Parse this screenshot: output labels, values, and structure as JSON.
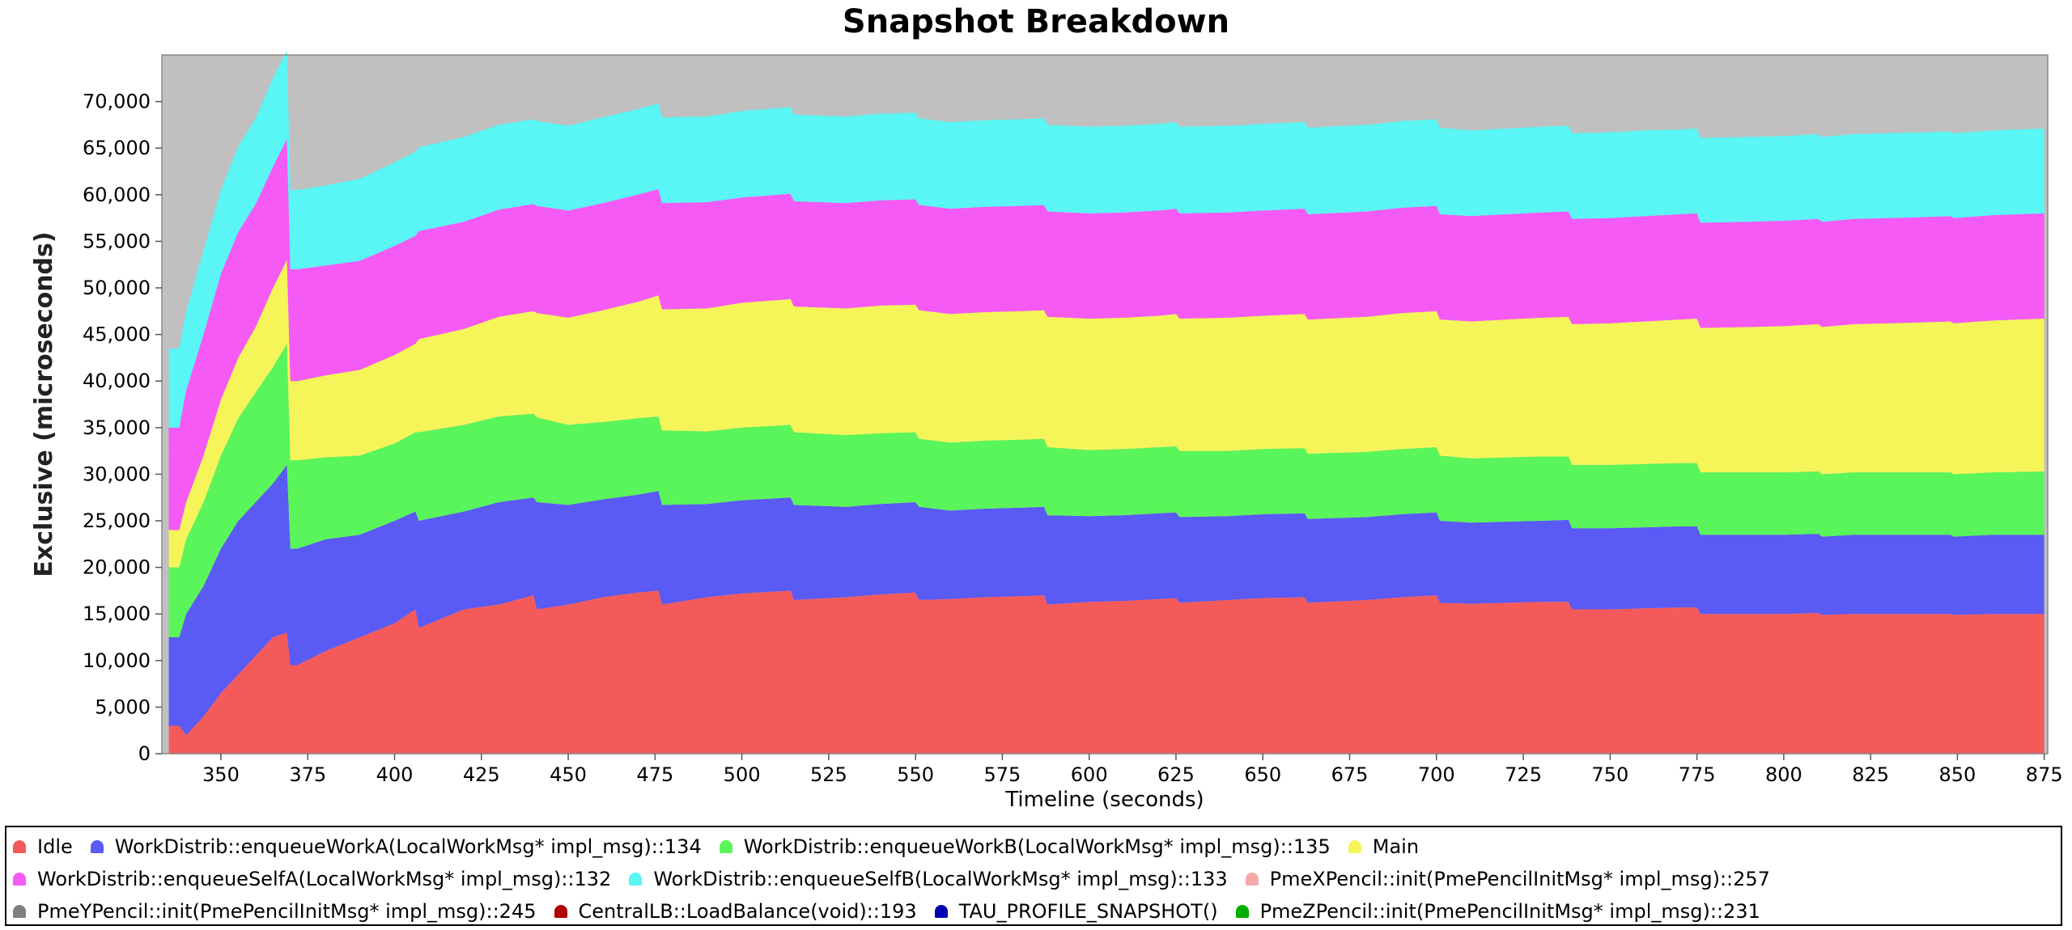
{
  "title": "Snapshot Breakdown",
  "chart_data": {
    "type": "area",
    "stacked": true,
    "title": "Snapshot Breakdown",
    "xlabel": "Timeline (seconds)",
    "ylabel": "Exclusive (microseconds)",
    "xlim": [
      333,
      876
    ],
    "ylim": [
      0,
      75000
    ],
    "x_ticks": [
      350,
      375,
      400,
      425,
      450,
      475,
      500,
      525,
      550,
      575,
      600,
      625,
      650,
      675,
      700,
      725,
      750,
      775,
      800,
      825,
      850,
      875
    ],
    "x_tick_labels": [
      "350",
      "375",
      "400",
      "425",
      "450",
      "475",
      "500",
      "525",
      "550",
      "575",
      "600",
      "625",
      "650",
      "675",
      "700",
      "725",
      "750",
      "775",
      "800",
      "825",
      "850",
      "875"
    ],
    "y_ticks": [
      0,
      5000,
      10000,
      15000,
      20000,
      25000,
      30000,
      35000,
      40000,
      45000,
      50000,
      55000,
      60000,
      65000,
      70000
    ],
    "y_tick_labels": [
      "0",
      "5,000",
      "10,000",
      "15,000",
      "20,000",
      "25,000",
      "30,000",
      "35,000",
      "40,000",
      "45,000",
      "50,000",
      "55,000",
      "60,000",
      "65,000",
      "70,000"
    ],
    "grid": false,
    "background_color": "#c0c0c0",
    "legend_position": "bottom",
    "x": [
      335,
      338,
      340,
      345,
      350,
      355,
      360,
      365,
      369,
      370,
      372,
      380,
      390,
      400,
      406,
      407,
      420,
      430,
      440,
      441,
      450,
      460,
      470,
      476,
      477,
      490,
      500,
      514,
      515,
      530,
      540,
      550,
      551,
      560,
      570,
      580,
      587,
      588,
      600,
      610,
      620,
      625,
      626,
      640,
      650,
      662,
      663,
      680,
      690,
      700,
      701,
      710,
      720,
      730,
      738,
      739,
      750,
      760,
      770,
      775,
      776,
      790,
      800,
      810,
      811,
      820,
      830,
      840,
      848,
      849,
      860,
      875
    ],
    "series": [
      {
        "name": "Idle",
        "color": "#f55a5a",
        "values": [
          3000,
          3000,
          2000,
          4000,
          6500,
          8500,
          10500,
          12500,
          13000,
          9500,
          9500,
          11000,
          12500,
          14000,
          15500,
          13500,
          15500,
          16000,
          17000,
          15500,
          16000,
          16800,
          17300,
          17500,
          16000,
          16800,
          17200,
          17500,
          16500,
          16800,
          17100,
          17300,
          16500,
          16600,
          16800,
          16900,
          17000,
          16000,
          16300,
          16400,
          16600,
          16700,
          16200,
          16500,
          16700,
          16800,
          16200,
          16500,
          16800,
          17000,
          16200,
          16100,
          16200,
          16300,
          16300,
          15500,
          15500,
          15600,
          15700,
          15700,
          15000,
          15000,
          15000,
          15100,
          14900,
          15000,
          15000,
          15000,
          15000,
          14900,
          15000,
          15000
        ]
      },
      {
        "name": "WorkDistrib::enqueueWorkA(LocalWorkMsg* impl_msg)::134",
        "color": "#5a5af5",
        "values": [
          9500,
          9500,
          13000,
          14000,
          15500,
          16500,
          16500,
          16500,
          18000,
          12500,
          12500,
          12000,
          11000,
          11000,
          10500,
          11500,
          10500,
          11000,
          10500,
          11500,
          10700,
          10500,
          10500,
          10700,
          10700,
          10000,
          10000,
          10000,
          10200,
          9700,
          9700,
          9700,
          10000,
          9500,
          9500,
          9500,
          9500,
          9600,
          9200,
          9200,
          9200,
          9200,
          9200,
          9000,
          9000,
          9000,
          9000,
          8900,
          8900,
          8900,
          8800,
          8700,
          8700,
          8700,
          8800,
          8700,
          8700,
          8700,
          8700,
          8700,
          8500,
          8500,
          8500,
          8500,
          8400,
          8500,
          8500,
          8500,
          8500,
          8400,
          8500,
          8500
        ]
      },
      {
        "name": "WorkDistrib::enqueueWorkB(LocalWorkMsg* impl_msg)::135",
        "color": "#5af55a",
        "values": [
          7500,
          7500,
          8000,
          9000,
          10000,
          11000,
          11800,
          12500,
          13000,
          9500,
          9500,
          8800,
          8500,
          8300,
          8500,
          9500,
          9300,
          9200,
          9000,
          9100,
          8600,
          8300,
          8200,
          8000,
          8000,
          7800,
          7800,
          7800,
          7800,
          7700,
          7600,
          7500,
          7300,
          7300,
          7300,
          7300,
          7300,
          7300,
          7100,
          7100,
          7100,
          7100,
          7100,
          7000,
          7000,
          7000,
          7000,
          7000,
          7000,
          7000,
          7000,
          6900,
          6900,
          6900,
          6800,
          6800,
          6800,
          6800,
          6800,
          6800,
          6700,
          6700,
          6700,
          6700,
          6700,
          6700,
          6700,
          6700,
          6700,
          6700,
          6700,
          6800
        ]
      },
      {
        "name": "Main",
        "color": "#f5f55a",
        "values": [
          4000,
          4000,
          4000,
          5000,
          6000,
          6500,
          7000,
          8500,
          9000,
          8500,
          8500,
          8800,
          9200,
          9500,
          9500,
          10000,
          10300,
          10700,
          11000,
          11200,
          11500,
          12000,
          12500,
          13000,
          13000,
          13200,
          13400,
          13500,
          13500,
          13600,
          13700,
          13700,
          13800,
          13800,
          13800,
          13800,
          13800,
          14000,
          14100,
          14100,
          14100,
          14200,
          14200,
          14300,
          14300,
          14400,
          14400,
          14500,
          14600,
          14600,
          14600,
          14700,
          14800,
          14900,
          15000,
          15100,
          15200,
          15300,
          15400,
          15500,
          15500,
          15600,
          15700,
          15800,
          15800,
          15900,
          16000,
          16100,
          16200,
          16200,
          16300,
          16400
        ]
      },
      {
        "name": "WorkDistrib::enqueueSelfA(LocalWorkMsg* impl_msg)::132",
        "color": "#f55af5",
        "values": [
          11000,
          11000,
          12000,
          13000,
          13500,
          13500,
          13200,
          13000,
          13000,
          12000,
          12000,
          11800,
          11700,
          11700,
          11600,
          11600,
          11500,
          11500,
          11500,
          11500,
          11500,
          11500,
          11500,
          11400,
          11400,
          11400,
          11300,
          11300,
          11300,
          11300,
          11300,
          11300,
          11300,
          11300,
          11300,
          11300,
          11300,
          11300,
          11300,
          11300,
          11300,
          11300,
          11300,
          11300,
          11300,
          11300,
          11300,
          11300,
          11300,
          11300,
          11300,
          11300,
          11300,
          11300,
          11300,
          11300,
          11300,
          11300,
          11300,
          11300,
          11300,
          11300,
          11300,
          11300,
          11300,
          11300,
          11300,
          11300,
          11300,
          11300,
          11300,
          11300
        ]
      },
      {
        "name": "WorkDistrib::enqueueSelfB(LocalWorkMsg* impl_msg)::133",
        "color": "#5af5f5",
        "values": [
          8500,
          8500,
          8500,
          9000,
          9000,
          9200,
          9200,
          9500,
          9500,
          8500,
          8500,
          8600,
          8800,
          9000,
          9000,
          9000,
          9100,
          9100,
          9100,
          9100,
          9100,
          9200,
          9200,
          9200,
          9200,
          9200,
          9300,
          9300,
          9300,
          9300,
          9300,
          9300,
          9300,
          9300,
          9300,
          9300,
          9300,
          9300,
          9300,
          9300,
          9300,
          9300,
          9300,
          9300,
          9300,
          9300,
          9300,
          9300,
          9300,
          9300,
          9300,
          9200,
          9200,
          9200,
          9200,
          9200,
          9200,
          9200,
          9100,
          9100,
          9100,
          9100,
          9100,
          9100,
          9100,
          9100,
          9100,
          9100,
          9100,
          9100,
          9100,
          9100
        ]
      }
    ],
    "idle_spikes_note": "",
    "legend": [
      {
        "label": "Idle",
        "color": "#f55a5a"
      },
      {
        "label": "WorkDistrib::enqueueWorkA(LocalWorkMsg* impl_msg)::134",
        "color": "#5a5af5"
      },
      {
        "label": "WorkDistrib::enqueueWorkB(LocalWorkMsg* impl_msg)::135",
        "color": "#5af55a"
      },
      {
        "label": "Main",
        "color": "#f5f55a"
      },
      {
        "label": "WorkDistrib::enqueueSelfA(LocalWorkMsg* impl_msg)::132",
        "color": "#f55af5"
      },
      {
        "label": "WorkDistrib::enqueueSelfB(LocalWorkMsg* impl_msg)::133",
        "color": "#5af5f5"
      },
      {
        "label": "PmeXPencil::init(PmePencilInitMsg* impl_msg)::257",
        "color": "#f5aaaa"
      },
      {
        "label": "PmeYPencil::init(PmePencilInitMsg* impl_msg)::245",
        "color": "#808080"
      },
      {
        "label": "CentralLB::LoadBalance(void)::193",
        "color": "#b00000"
      },
      {
        "label": "TAU_PROFILE_SNAPSHOT()",
        "color": "#0000b0"
      },
      {
        "label": "PmeZPencil::init(PmePencilInitMsg* impl_msg)::231",
        "color": "#00b000"
      }
    ],
    "legend_rows": [
      [
        0,
        1,
        2,
        3
      ],
      [
        4,
        5,
        6
      ],
      [
        7,
        8,
        9,
        10
      ]
    ]
  }
}
